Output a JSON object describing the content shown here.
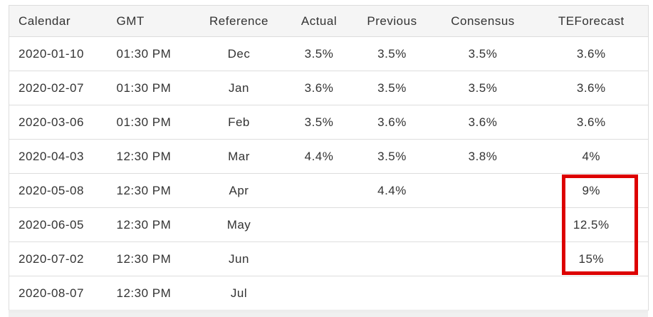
{
  "table": {
    "columns": [
      {
        "key": "calendar",
        "label": "Calendar",
        "align": "left"
      },
      {
        "key": "gmt",
        "label": "GMT",
        "align": "left"
      },
      {
        "key": "reference",
        "label": "Reference",
        "align": "center"
      },
      {
        "key": "actual",
        "label": "Actual",
        "align": "center"
      },
      {
        "key": "previous",
        "label": "Previous",
        "align": "center"
      },
      {
        "key": "consensus",
        "label": "Consensus",
        "align": "center"
      },
      {
        "key": "teforecast",
        "label": "TEForecast",
        "align": "center"
      }
    ],
    "rows": [
      [
        "2020-01-10",
        "01:30 PM",
        "Dec",
        "3.5%",
        "3.5%",
        "3.5%",
        "3.6%"
      ],
      [
        "2020-02-07",
        "01:30 PM",
        "Jan",
        "3.6%",
        "3.5%",
        "3.5%",
        "3.6%"
      ],
      [
        "2020-03-06",
        "01:30 PM",
        "Feb",
        "3.5%",
        "3.6%",
        "3.6%",
        "3.6%"
      ],
      [
        "2020-04-03",
        "12:30 PM",
        "Mar",
        "4.4%",
        "3.5%",
        "3.8%",
        "4%"
      ],
      [
        "2020-05-08",
        "12:30 PM",
        "Apr",
        "",
        "4.4%",
        "",
        "9%"
      ],
      [
        "2020-06-05",
        "12:30 PM",
        "May",
        "",
        "",
        "",
        "12.5%"
      ],
      [
        "2020-07-02",
        "12:30 PM",
        "Jun",
        "",
        "",
        "",
        "15%"
      ],
      [
        "2020-08-07",
        "12:30 PM",
        "Jul",
        "",
        "",
        "",
        ""
      ]
    ],
    "highlight": {
      "column": "teforecast",
      "row_indexes": [
        4,
        5,
        6
      ],
      "values": [
        "9%",
        "12.5%",
        "15%"
      ],
      "color": "#dd0000"
    }
  },
  "colors": {
    "header_background": "#f5f5f5",
    "row_border": "#dddddd",
    "text": "#333333",
    "annotation_red": "#dd0000",
    "bottom_strip": "#f0f0f0"
  }
}
